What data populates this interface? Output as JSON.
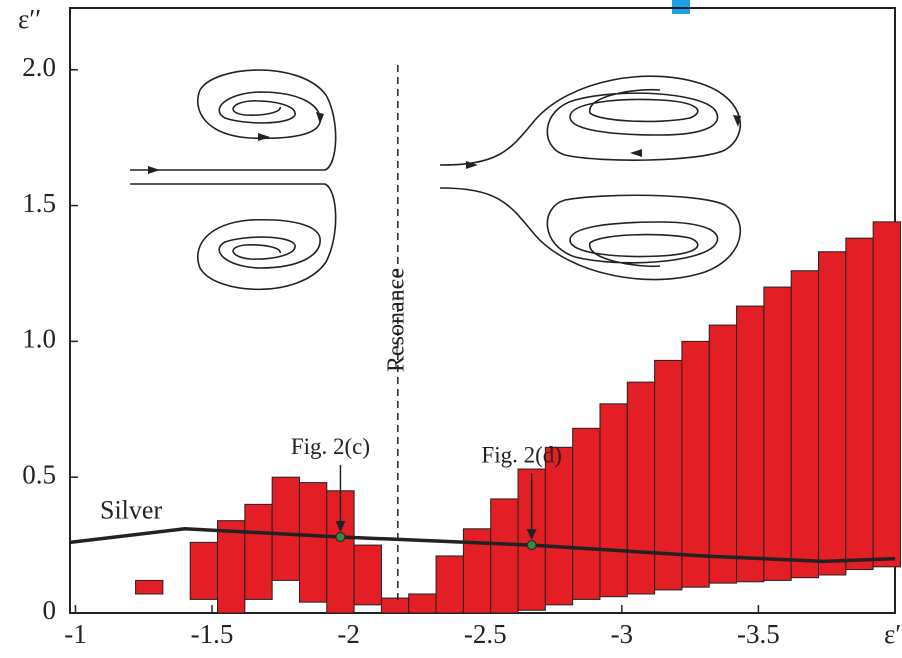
{
  "chart_data": {
    "type": "bar",
    "ylabel": "ε′′",
    "xlabel": "ε′",
    "xlim": [
      -0.98,
      -4.0
    ],
    "ylim": [
      0,
      2.22
    ],
    "xticks": [
      -1,
      -1.5,
      -2,
      -2.5,
      -3,
      -3.5
    ],
    "yticks": [
      0,
      0.5,
      {
        "value": 1,
        "label": "1.0"
      },
      1.5,
      {
        "value": 2,
        "label": "2.0"
      }
    ],
    "bars": {
      "color": "#e31e24",
      "bar_width": 0.1,
      "x": [
        -1.27,
        -1.47,
        -1.57,
        -1.67,
        -1.77,
        -1.87,
        -1.97,
        -2.07,
        -2.17,
        -2.27,
        -2.37,
        -2.47,
        -2.57,
        -2.67,
        -2.77,
        -2.87,
        -2.97,
        -3.07,
        -3.17,
        -3.27,
        -3.37,
        -3.47,
        -3.57,
        -3.67,
        -3.77,
        -3.87,
        -3.97
      ],
      "low": [
        0.07,
        0.05,
        0,
        0.05,
        0.12,
        0.04,
        0,
        0.03,
        0,
        0,
        0,
        0,
        0,
        0.01,
        0.03,
        0.05,
        0.06,
        0.07,
        0.085,
        0.095,
        0.11,
        0.115,
        0.12,
        0.13,
        0.14,
        0.16,
        0.17
      ],
      "high": [
        0.12,
        0.26,
        0.34,
        0.4,
        0.5,
        0.48,
        0.45,
        0.25,
        0.055,
        0.07,
        0.21,
        0.31,
        0.42,
        0.53,
        0.61,
        0.68,
        0.77,
        0.85,
        0.93,
        1.0,
        1.06,
        1.13,
        1.2,
        1.26,
        1.33,
        1.38,
        1.44
      ]
    },
    "lines": [
      {
        "name": "Silver",
        "color": "#222222",
        "x": [
          -0.98,
          -1.4,
          -1.97,
          -2.67,
          -3.3,
          -3.74,
          -4.0
        ],
        "values": [
          0.26,
          0.31,
          0.28,
          0.25,
          0.21,
          0.19,
          0.2
        ]
      }
    ],
    "resonance": {
      "text": "Resonance",
      "x": -2.18
    },
    "annotations": [
      {
        "text": "Fig. 2(c)",
        "x": -1.97,
        "y": 0.28,
        "color": "#2e8b3e"
      },
      {
        "text": "Fig. 2(d)",
        "x": -2.67,
        "y": 0.25,
        "color": "#2e8b3e"
      }
    ]
  }
}
